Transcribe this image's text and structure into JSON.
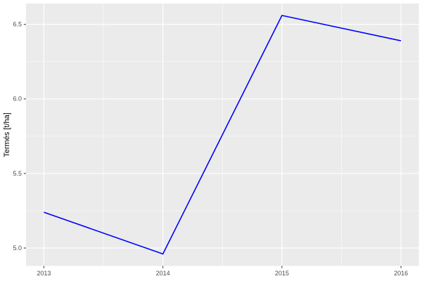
{
  "figure": {
    "background": "#FFFFFF"
  },
  "chart_data": {
    "type": "line",
    "title": "",
    "xlabel": "",
    "ylabel": "Termés [t/ha]",
    "x": [
      2013,
      2014,
      2015,
      2016
    ],
    "x_tick_labels": [
      "2013",
      "2014",
      "2015",
      "2016"
    ],
    "y_ticks": [
      5.0,
      5.5,
      6.0,
      6.5
    ],
    "y_tick_labels": [
      "5.0",
      "5.5",
      "6.0",
      "6.5"
    ],
    "x_minor_ticks": [
      2013.5,
      2014.5,
      2015.5
    ],
    "y_minor_ticks": [
      5.25,
      5.75,
      6.25
    ],
    "series": [
      {
        "name": "Termés",
        "color": "#0000FF",
        "values": [
          5.24,
          4.96,
          6.56,
          6.39
        ]
      }
    ],
    "xlim": [
      2012.85,
      2016.15
    ],
    "ylim": [
      4.88,
      6.64
    ],
    "grid": "major+minor",
    "legend_position": "none",
    "style": {
      "panel_background": "#EBEBEB",
      "grid_color": "#FFFFFF",
      "major_grid_width": 1.1,
      "minor_grid_width": 0.55,
      "line_width": 1.6,
      "tick_label_color": "#4D4D4D",
      "axis_title_color": "#000000",
      "tick_mark_color": "#333333"
    }
  }
}
